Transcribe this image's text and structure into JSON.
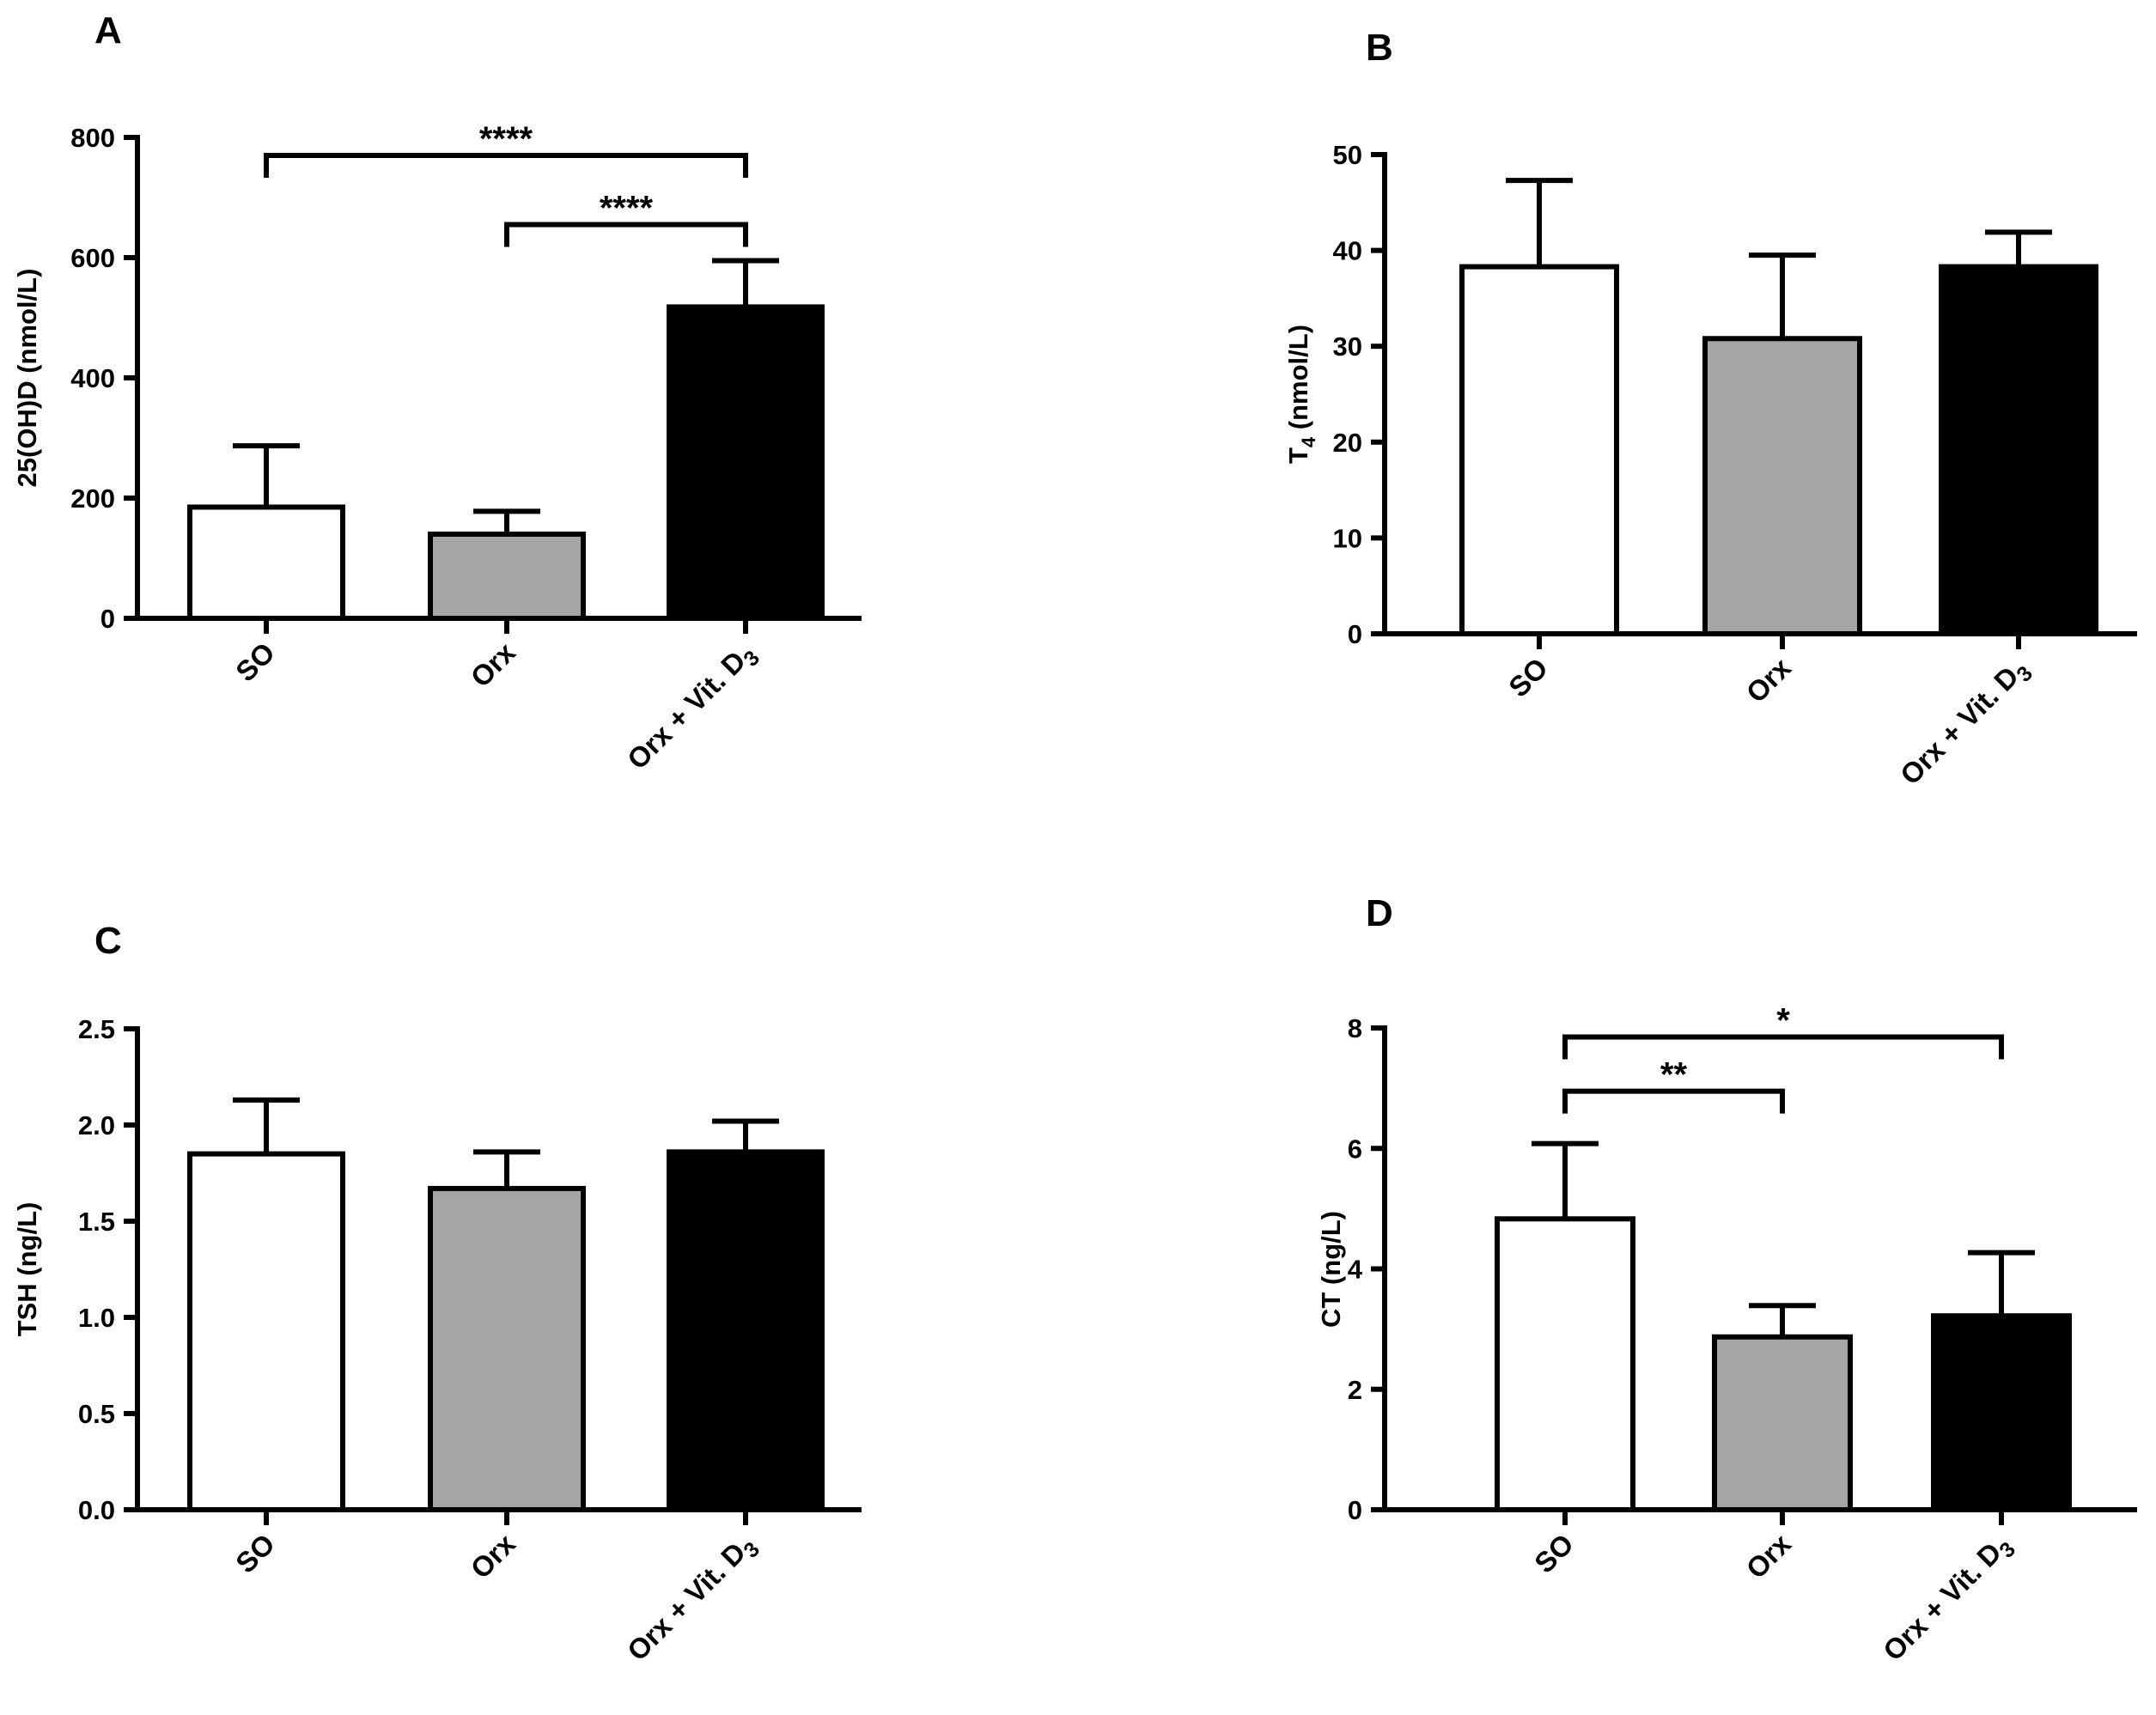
{
  "chart_data": [
    {
      "type": "bar",
      "panel_label": "A",
      "title": "",
      "ylabel": {
        "main": "25(OH)D (nmol/L)",
        "sub": ""
      },
      "ylim": [
        0,
        800
      ],
      "yticks": [
        0,
        200,
        400,
        600,
        800
      ],
      "ytick_labels": [
        "0",
        "200",
        "400",
        "600",
        "800"
      ],
      "categories": [
        {
          "main": "SO",
          "sub": ""
        },
        {
          "main": "Orx",
          "sub": ""
        },
        {
          "main": "Orx + Vit. D",
          "sub": "3"
        }
      ],
      "values": [
        185,
        140,
        518
      ],
      "errors": [
        102,
        38,
        77
      ],
      "fills": [
        "#ffffff",
        "#a5a5a8",
        "#000000"
      ],
      "significance": [
        {
          "from": 0,
          "to": 2,
          "label": "****",
          "level": 770
        },
        {
          "from": 1,
          "to": 2,
          "label": "****",
          "level": 655
        }
      ]
    },
    {
      "type": "bar",
      "panel_label": "B",
      "title": "",
      "ylabel": {
        "main": "T",
        "sub": "4",
        "rest": " (nmol/L)"
      },
      "ylim": [
        0,
        50
      ],
      "yticks": [
        0,
        10,
        20,
        30,
        40,
        50
      ],
      "ytick_labels": [
        "0",
        "10",
        "20",
        "30",
        "40",
        "50"
      ],
      "categories": [
        {
          "main": "SO",
          "sub": ""
        },
        {
          "main": "Orx",
          "sub": ""
        },
        {
          "main": "Orx + Vit. D",
          "sub": "3"
        }
      ],
      "values": [
        38.3,
        30.8,
        38.3
      ],
      "errors": [
        9.0,
        8.7,
        3.6
      ],
      "fills": [
        "#ffffff",
        "#a5a5a8",
        "#000000"
      ],
      "significance": []
    },
    {
      "type": "bar",
      "panel_label": "C",
      "title": "",
      "ylabel": {
        "main": "TSH (ng/L)",
        "sub": ""
      },
      "ylim": [
        0,
        2.5
      ],
      "yticks": [
        0,
        0.5,
        1.0,
        1.5,
        2.0,
        2.5
      ],
      "ytick_labels": [
        "0.0",
        "0.5",
        "1.0",
        "1.5",
        "2.0",
        "2.5"
      ],
      "categories": [
        {
          "main": "SO",
          "sub": ""
        },
        {
          "main": "Orx",
          "sub": ""
        },
        {
          "main": "Orx + Vit. D",
          "sub": "3"
        }
      ],
      "values": [
        1.85,
        1.67,
        1.86
      ],
      "errors": [
        0.28,
        0.19,
        0.16
      ],
      "fills": [
        "#ffffff",
        "#a5a5a8",
        "#000000"
      ],
      "significance": []
    },
    {
      "type": "bar",
      "panel_label": "D",
      "title": "",
      "ylabel": {
        "main": "CT (ng/L)",
        "sub": ""
      },
      "ylim": [
        0,
        8
      ],
      "yticks": [
        0,
        2,
        4,
        6,
        8
      ],
      "ytick_labels": [
        "0",
        "2",
        "4",
        "6",
        "8"
      ],
      "categories": [
        {
          "main": "SO",
          "sub": ""
        },
        {
          "main": "Orx",
          "sub": ""
        },
        {
          "main": "Orx + Vit. D",
          "sub": "3"
        }
      ],
      "values": [
        4.83,
        2.87,
        3.22
      ],
      "errors": [
        1.25,
        0.52,
        1.05
      ],
      "fills": [
        "#ffffff",
        "#a5a5a8",
        "#000000"
      ],
      "significance": [
        {
          "from": 0,
          "to": 2,
          "label": "*",
          "level": 7.85
        },
        {
          "from": 0,
          "to": 1,
          "label": "**",
          "level": 6.95
        }
      ]
    }
  ]
}
